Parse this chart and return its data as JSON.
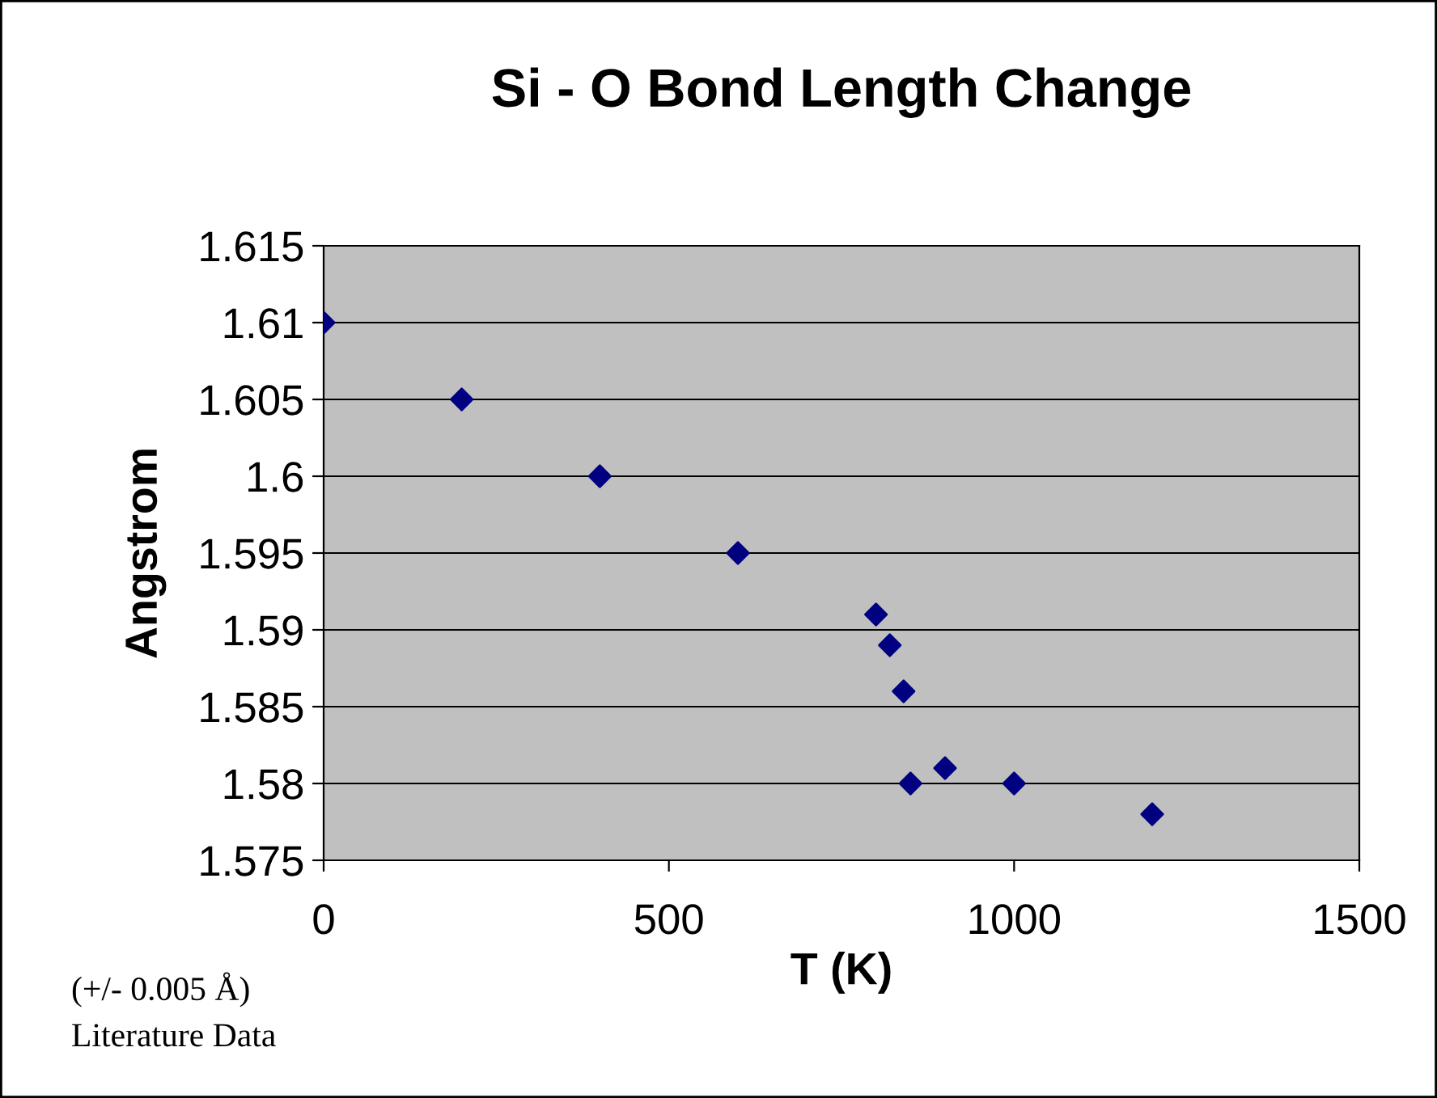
{
  "chart_data": {
    "type": "scatter",
    "title": "Si - O Bond Length Change",
    "xlabel": "T (K)",
    "ylabel": "Angstrom",
    "x": [
      0,
      200,
      400,
      600,
      800,
      820,
      840,
      850,
      900,
      1000,
      1200
    ],
    "values": [
      1.61,
      1.605,
      1.6,
      1.595,
      1.591,
      1.589,
      1.586,
      1.58,
      1.581,
      1.58,
      1.578
    ],
    "color": "#000080",
    "marker": "diamond",
    "xlim": [
      0,
      1500
    ],
    "xticks": [
      0,
      500,
      1000,
      1500
    ],
    "ylim": [
      1.575,
      1.615
    ],
    "yticks": [
      1.575,
      1.58,
      1.585,
      1.59,
      1.595,
      1.6,
      1.605,
      1.61,
      1.615
    ],
    "grid": "y",
    "legend": false,
    "annotations": [
      "(+/- 0.005 Å)",
      "Literature Data"
    ]
  }
}
